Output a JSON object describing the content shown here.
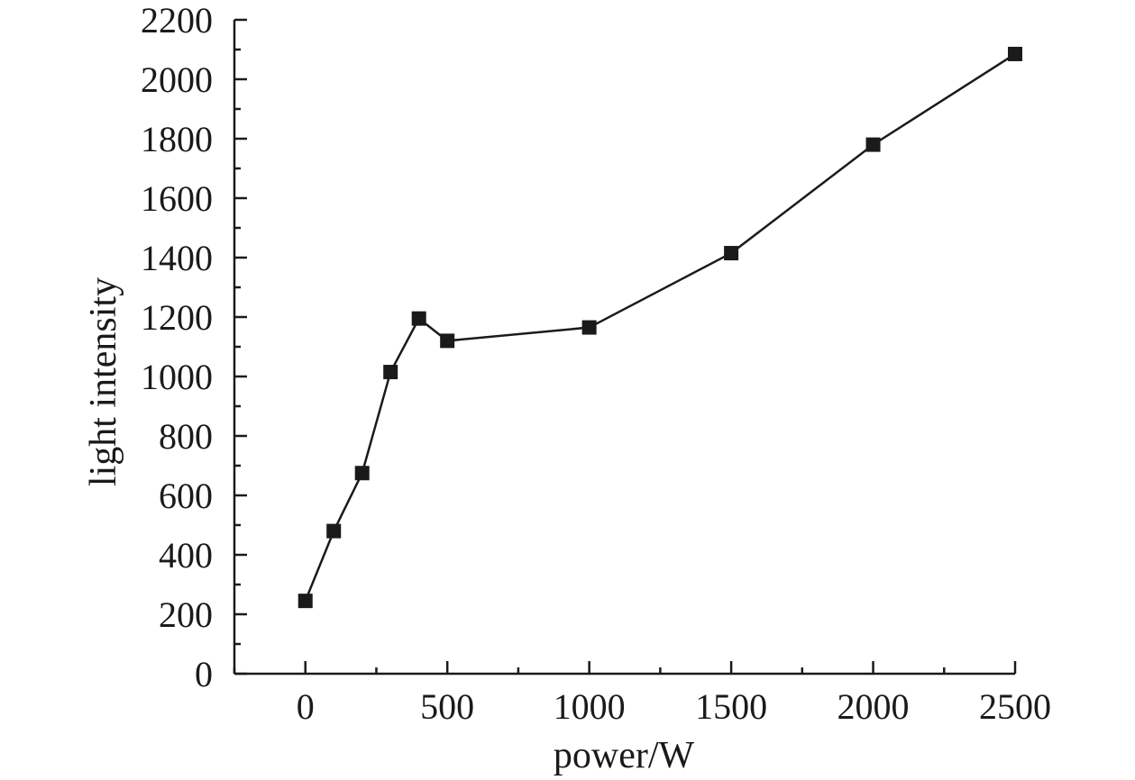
{
  "chart_data": {
    "type": "line",
    "title": "",
    "xlabel": "power/W",
    "ylabel": "light intensity",
    "xlim": [
      -250,
      2500
    ],
    "ylim": [
      0,
      2200
    ],
    "x_ticks": [
      0,
      500,
      1000,
      1500,
      2000,
      2500
    ],
    "x_minor_ticks": [
      -250,
      250,
      750,
      1250,
      1750,
      2250
    ],
    "y_ticks": [
      0,
      200,
      400,
      600,
      800,
      1000,
      1200,
      1400,
      1600,
      1800,
      2000,
      2200
    ],
    "y_minor_ticks": [
      100,
      300,
      500,
      700,
      900,
      1100,
      1300,
      1500,
      1700,
      1900,
      2100
    ],
    "grid": false,
    "marker": "square",
    "color": "#1a1a1a",
    "series": [
      {
        "x": [
          0,
          100,
          200,
          300,
          400,
          500,
          1000,
          1500,
          2000,
          2500
        ],
        "y": [
          245,
          480,
          675,
          1015,
          1195,
          1120,
          1165,
          1415,
          1780,
          2085
        ]
      }
    ]
  }
}
